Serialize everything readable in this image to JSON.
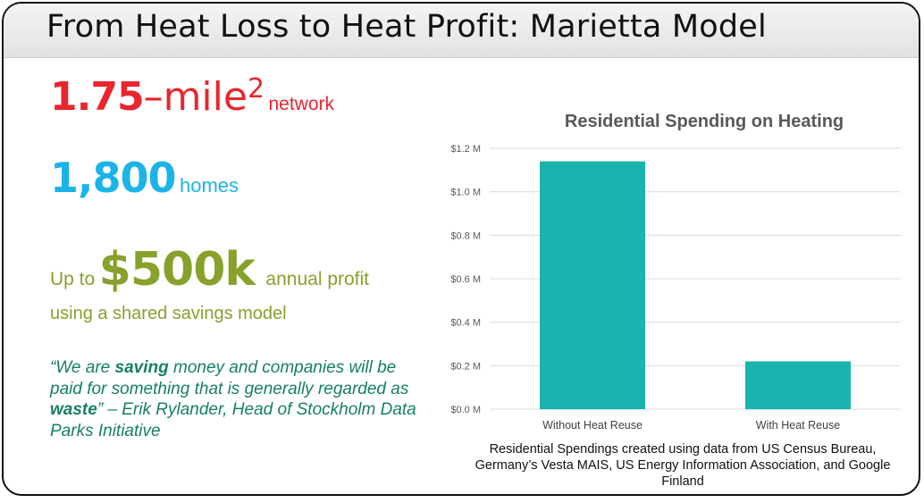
{
  "slide": {
    "title": "From Heat Loss to Heat Profit: Marietta Model"
  },
  "stats": {
    "network": {
      "value": "1.75",
      "dash": "–",
      "unit": "mile",
      "exponent": "2",
      "label": "network"
    },
    "homes": {
      "value": "1,800",
      "label": "homes"
    },
    "profit": {
      "prefix": "Up to",
      "value": "$500k",
      "suffix": "annual profit",
      "subtext": "using a shared savings model"
    }
  },
  "quote": {
    "open": "“We are ",
    "emph1": "saving",
    "mid": " money and companies will be paid for something that is generally regarded as ",
    "emph2": "waste",
    "close": "” – Erik Rylander, Head of Stockholm Data Parks Initiative"
  },
  "colors": {
    "network": "#e8262e",
    "homes": "#1cb4e6",
    "profit": "#86a22c",
    "quote": "#157f66",
    "bar": "#1bb3ad"
  },
  "chart_data": {
    "type": "bar",
    "title": "Residential Spending on Heating",
    "categories": [
      "Without Heat Reuse",
      "With Heat Reuse"
    ],
    "values": [
      1.14,
      0.22
    ],
    "y_ticks": [
      "$0.0 M",
      "$0.2 M",
      "$0.4 M",
      "$0.6 M",
      "$0.8 M",
      "$1.0 M",
      "$1.2 M"
    ],
    "ylim": [
      0,
      1.2
    ],
    "grid": true,
    "legend": "none",
    "caption": "Residential Spendings created using data from US Census Bureau, Germany’s Vesta MAIS, US Energy Information Association, and Google Finland"
  }
}
